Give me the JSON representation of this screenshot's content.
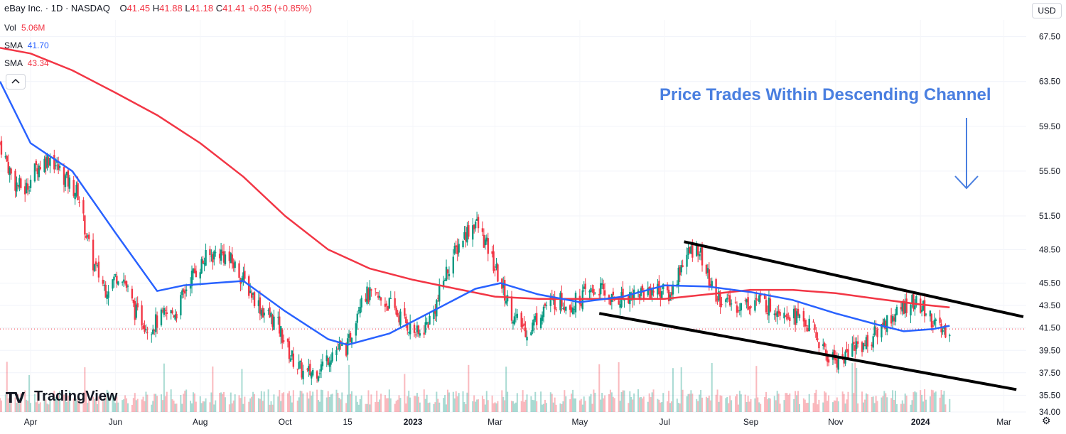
{
  "header": {
    "title": "eBay Inc. · 1D · NASDAQ",
    "open_label": "O",
    "open": "41.45",
    "high_label": "H",
    "high": "41.88",
    "low_label": "L",
    "low": "41.18",
    "close_label": "C",
    "close": "41.41",
    "change": "+0.35 (+0.85%)"
  },
  "indicators": [
    {
      "label": "Vol",
      "value": "5.06M",
      "color": "#f23645"
    },
    {
      "label": "SMA",
      "value": "41.70",
      "color": "#2962ff"
    },
    {
      "label": "SMA",
      "value": "43.34",
      "color": "#f23645"
    }
  ],
  "currency": "USD",
  "logo_text": "TradingView",
  "chart_data": {
    "type": "candlestick",
    "title": "",
    "annotation": "Price Trades Within Descending Channel",
    "y_ticks": [
      "67.50",
      "63.50",
      "59.50",
      "55.50",
      "51.50",
      "48.50",
      "45.50",
      "43.50",
      "41.50",
      "39.50",
      "37.50",
      "35.50",
      "34.00"
    ],
    "x_ticks": [
      "Apr",
      "Jun",
      "Aug",
      "Oct",
      "15",
      "2023",
      "Mar",
      "May",
      "Jul",
      "Sep",
      "Nov",
      "2024",
      "Mar"
    ],
    "last_price": 41.41,
    "sma_short_last": 41.7,
    "sma_long_last": 43.34,
    "price_path": {
      "dates": [
        "2022-03-10",
        "2022-03-20",
        "2022-03-28",
        "2022-04-05",
        "2022-04-15",
        "2022-04-25",
        "2022-05-05",
        "2022-05-15",
        "2022-05-25",
        "2022-06-05",
        "2022-06-15",
        "2022-06-25",
        "2022-07-05",
        "2022-07-15",
        "2022-07-25",
        "2022-08-05",
        "2022-08-15",
        "2022-08-25",
        "2022-09-05",
        "2022-09-15",
        "2022-09-25",
        "2022-10-05",
        "2022-10-15",
        "2022-10-25",
        "2022-11-05",
        "2022-11-15",
        "2022-11-25",
        "2022-12-05",
        "2022-12-15",
        "2022-12-25",
        "2023-01-05",
        "2023-01-15",
        "2023-01-25",
        "2023-02-05",
        "2023-02-15",
        "2023-02-25",
        "2023-03-05",
        "2023-03-15",
        "2023-03-25",
        "2023-04-05",
        "2023-04-15",
        "2023-04-25",
        "2023-05-05",
        "2023-05-15",
        "2023-05-25",
        "2023-06-05",
        "2023-06-15",
        "2023-06-25",
        "2023-07-05",
        "2023-07-15",
        "2023-07-25",
        "2023-08-05",
        "2023-08-15",
        "2023-08-25",
        "2023-09-05",
        "2023-09-15",
        "2023-09-25",
        "2023-10-05",
        "2023-10-15",
        "2023-10-25",
        "2023-11-05",
        "2023-11-15",
        "2023-11-25",
        "2023-12-05",
        "2023-12-15",
        "2023-12-25",
        "2024-01-05",
        "2024-01-15",
        "2024-01-22"
      ],
      "close": [
        58.0,
        54.5,
        53.8,
        55.8,
        56.8,
        55.0,
        53.5,
        47.5,
        45.0,
        46.6,
        43.0,
        41.5,
        42.5,
        43.0,
        46.0,
        47.7,
        48.3,
        47.2,
        45.0,
        43.0,
        42.0,
        39.0,
        37.3,
        37.8,
        39.5,
        39.8,
        44.6,
        44.2,
        43.6,
        42.2,
        40.8,
        42.6,
        46.5,
        49.5,
        51.0,
        48.2,
        45.5,
        42.3,
        41.2,
        43.4,
        44.0,
        43.6,
        44.5,
        45.0,
        43.9,
        44.5,
        44.7,
        45.0,
        44.4,
        47.8,
        48.8,
        44.6,
        43.7,
        43.5,
        44.0,
        43.4,
        43.2,
        42.4,
        41.5,
        39.0,
        38.6,
        40.0,
        40.2,
        41.9,
        42.8,
        43.9,
        43.0,
        41.2,
        41.41
      ]
    },
    "sma_short": {
      "dates": [
        "2022-03-10",
        "2022-04-01",
        "2022-05-01",
        "2022-06-01",
        "2022-07-01",
        "2022-07-20",
        "2022-08-10",
        "2022-09-01",
        "2022-10-01",
        "2022-11-01",
        "2022-11-15",
        "2022-12-15",
        "2023-01-15",
        "2023-02-15",
        "2023-03-05",
        "2023-04-01",
        "2023-05-01",
        "2023-06-01",
        "2023-07-01",
        "2023-08-01",
        "2023-09-01",
        "2023-10-01",
        "2023-11-01",
        "2023-12-01",
        "2023-12-20",
        "2024-01-10",
        "2024-01-22"
      ],
      "values": [
        63.5,
        58.0,
        55.5,
        50.0,
        44.8,
        45.3,
        45.5,
        45.7,
        43.0,
        40.5,
        40.0,
        41.0,
        43.0,
        45.0,
        45.5,
        44.5,
        43.8,
        44.3,
        45.3,
        45.2,
        44.7,
        44.0,
        42.8,
        41.8,
        41.2,
        41.4,
        41.7
      ]
    },
    "sma_long": {
      "dates": [
        "2022-03-10",
        "2022-04-01",
        "2022-05-01",
        "2022-06-01",
        "2022-07-01",
        "2022-08-01",
        "2022-09-01",
        "2022-10-01",
        "2022-11-01",
        "2022-12-01",
        "2023-01-01",
        "2023-02-01",
        "2023-03-01",
        "2023-04-01",
        "2023-05-01",
        "2023-06-01",
        "2023-07-01",
        "2023-08-01",
        "2023-09-01",
        "2023-10-01",
        "2023-11-01",
        "2023-12-01",
        "2024-01-01",
        "2024-01-22"
      ],
      "values": [
        66.5,
        66.0,
        64.5,
        62.5,
        60.5,
        58.0,
        55.0,
        51.5,
        48.5,
        46.8,
        45.8,
        45.0,
        44.3,
        44.1,
        44.1,
        44.1,
        44.1,
        44.5,
        44.9,
        44.9,
        44.6,
        44.1,
        43.6,
        43.34
      ]
    },
    "channel_upper": {
      "start_date": "2023-07-15",
      "start": 49.2,
      "end_date": "2024-03-15",
      "end": 42.5
    },
    "channel_lower": {
      "start_date": "2023-05-15",
      "start": 42.8,
      "end_date": "2024-03-10",
      "end": 36.0
    },
    "y_range": [
      34.0,
      69.0
    ]
  }
}
